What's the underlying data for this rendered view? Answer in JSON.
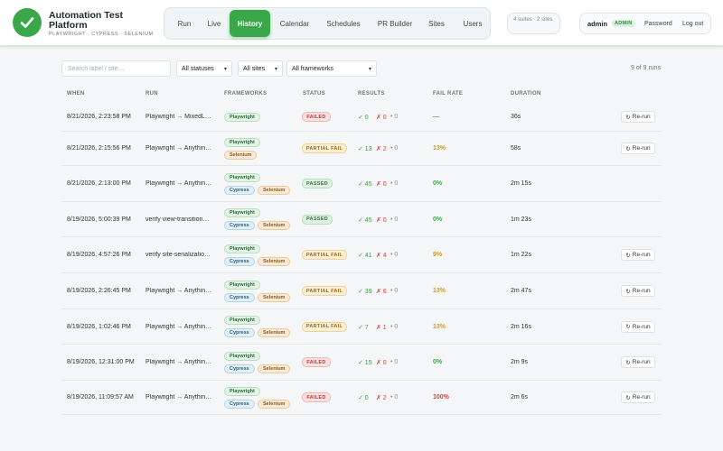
{
  "header": {
    "brand_title": "Automation Test Platform",
    "brand_subtitle": "PLAYWRIGHT · CYPRESS · SELENIUM",
    "nav": [
      {
        "label": "Run",
        "active": false
      },
      {
        "label": "Live",
        "active": false
      },
      {
        "label": "History",
        "active": true
      },
      {
        "label": "Calendar",
        "active": false
      },
      {
        "label": "Schedules",
        "active": false
      },
      {
        "label": "PR Builder",
        "active": false
      },
      {
        "label": "Sites",
        "active": false
      },
      {
        "label": "Users",
        "active": false
      }
    ],
    "suites_info": "4 suites · 2 sites",
    "user": {
      "name": "admin",
      "role": "ADMIN",
      "password_label": "Password",
      "logout_label": "Log out"
    }
  },
  "filters": {
    "search_placeholder": "Search label / site…",
    "status": "All statuses",
    "sites": "All sites",
    "frameworks": "All frameworks",
    "count": "9 of 9 runs"
  },
  "table": {
    "columns": [
      "WHEN",
      "RUN",
      "FRAMEWORKS",
      "STATUS",
      "RESULTS",
      "FAIL RATE",
      "DURATION"
    ],
    "rerun_label": "Re-run",
    "rows": [
      {
        "when": "8/21/2026, 2:23:58 PM",
        "run": "Playwright → MixedL…",
        "frameworks": [
          "Playwright"
        ],
        "status": "FAILED",
        "status_kind": "failed",
        "pass": "✓ 0",
        "fail": "✗ 0",
        "skip": "• 0",
        "fail_rate": "—",
        "rate_kind": "none",
        "duration": "36s",
        "rerun": true
      },
      {
        "when": "8/21/2026, 2:15:56 PM",
        "run": "Playwright → Anythin…",
        "frameworks": [
          "Playwright",
          "Selenium"
        ],
        "status": "PARTIAL FAIL",
        "status_kind": "partial",
        "pass": "✓ 13",
        "fail": "✗ 2",
        "skip": "• 0",
        "fail_rate": "13%",
        "rate_kind": "warn",
        "duration": "58s",
        "rerun": true
      },
      {
        "when": "8/21/2026, 2:13:00 PM",
        "run": "Playwright → Anythin…",
        "frameworks": [
          "Playwright",
          "Cypress",
          "Selenium"
        ],
        "status": "PASSED",
        "status_kind": "passed",
        "pass": "✓ 45",
        "fail": "✗ 0",
        "skip": "• 0",
        "fail_rate": "0%",
        "rate_kind": "good",
        "duration": "2m 15s",
        "rerun": false
      },
      {
        "when": "8/19/2026, 5:00:39 PM",
        "run": "verify view-transition…",
        "frameworks": [
          "Playwright",
          "Cypress",
          "Selenium"
        ],
        "status": "PASSED",
        "status_kind": "passed",
        "pass": "✓ 45",
        "fail": "✗ 0",
        "skip": "• 0",
        "fail_rate": "0%",
        "rate_kind": "good",
        "duration": "1m 23s",
        "rerun": false
      },
      {
        "when": "8/19/2026, 4:57:26 PM",
        "run": "verify site-serializatio…",
        "frameworks": [
          "Playwright",
          "Cypress",
          "Selenium"
        ],
        "status": "PARTIAL FAIL",
        "status_kind": "partial",
        "pass": "✓ 41",
        "fail": "✗ 4",
        "skip": "• 0",
        "fail_rate": "9%",
        "rate_kind": "warn",
        "duration": "1m 22s",
        "rerun": true
      },
      {
        "when": "8/19/2026, 2:26:45 PM",
        "run": "Playwright → Anythin…",
        "frameworks": [
          "Playwright",
          "Cypress",
          "Selenium"
        ],
        "status": "PARTIAL FAIL",
        "status_kind": "partial",
        "pass": "✓ 39",
        "fail": "✗ 6",
        "skip": "• 0",
        "fail_rate": "13%",
        "rate_kind": "warn",
        "duration": "2m 47s",
        "rerun": true
      },
      {
        "when": "8/19/2026, 1:02:46 PM",
        "run": "Playwright → Anythin…",
        "frameworks": [
          "Playwright",
          "Cypress",
          "Selenium"
        ],
        "status": "PARTIAL FAIL",
        "status_kind": "partial",
        "pass": "✓ 7",
        "fail": "✗ 1",
        "skip": "• 0",
        "fail_rate": "13%",
        "rate_kind": "warn",
        "duration": "2m 16s",
        "rerun": true
      },
      {
        "when": "8/19/2026, 12:31:00 PM",
        "run": "Playwright → Anythin…",
        "frameworks": [
          "Playwright",
          "Cypress",
          "Selenium"
        ],
        "status": "FAILED",
        "status_kind": "failed",
        "pass": "✓ 15",
        "fail": "✗ 0",
        "skip": "• 0",
        "fail_rate": "0%",
        "rate_kind": "good",
        "duration": "2m 9s",
        "rerun": true
      },
      {
        "when": "8/19/2026, 11:09:57 AM",
        "run": "Playwright → Anythin…",
        "frameworks": [
          "Playwright",
          "Cypress",
          "Selenium"
        ],
        "status": "FAILED",
        "status_kind": "failed",
        "pass": "✓ 0",
        "fail": "✗ 2",
        "skip": "• 0",
        "fail_rate": "100%",
        "rate_kind": "bad",
        "duration": "2m 6s",
        "rerun": true
      }
    ]
  }
}
